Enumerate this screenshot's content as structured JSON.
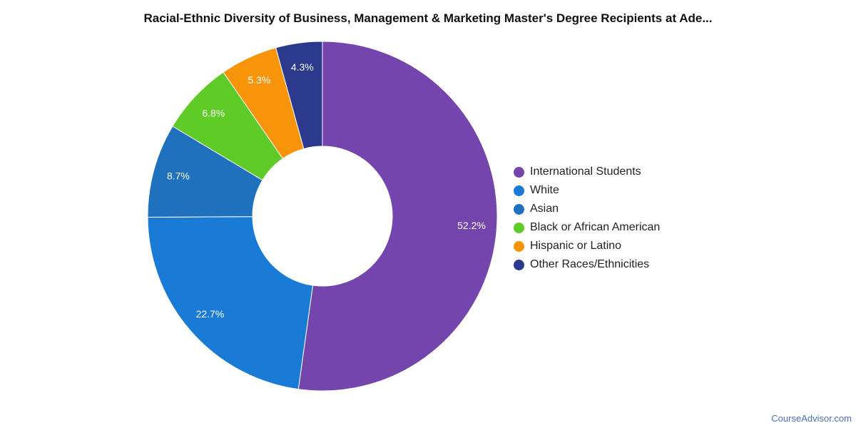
{
  "chart_data": {
    "type": "pie",
    "title": "Racial-Ethnic Diversity of Business, Management & Marketing Master's Degree Recipients at Ade...",
    "donut": true,
    "legend_position": "right",
    "slices": [
      {
        "label": "International Students",
        "value": 52.2,
        "display": "52.2%",
        "color": "#7446ad"
      },
      {
        "label": "White",
        "value": 22.7,
        "display": "22.7%",
        "color": "#1a7bd6"
      },
      {
        "label": "Asian",
        "value": 8.7,
        "display": "8.7%",
        "color": "#1f71bd"
      },
      {
        "label": "Black or African American",
        "value": 6.8,
        "display": "6.8%",
        "color": "#5ecb27"
      },
      {
        "label": "Hispanic or Latino",
        "value": 5.3,
        "display": "5.3%",
        "color": "#f7940a"
      },
      {
        "label": "Other Races/Ethnicities",
        "value": 4.3,
        "display": "4.3%",
        "color": "#2c3a8e"
      }
    ]
  },
  "credit": "CourseAdvisor.com"
}
